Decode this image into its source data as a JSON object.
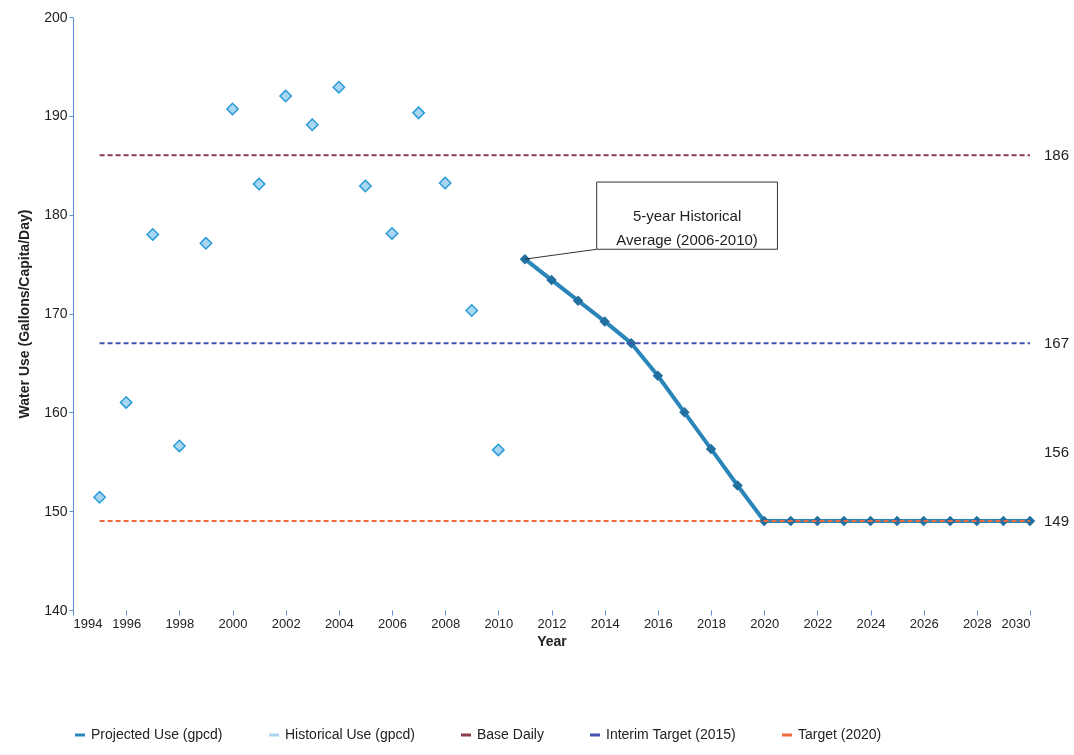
{
  "chart_data": {
    "type": "line",
    "xlabel": "Year",
    "ylabel": "Water Use (Gallons/Capita/Day)",
    "xlim": [
      1994,
      2030
    ],
    "xticks": [
      1994,
      1996,
      1998,
      2000,
      2002,
      2004,
      2006,
      2008,
      2010,
      2012,
      2014,
      2016,
      2018,
      2020,
      2022,
      2024,
      2026,
      2028,
      2030
    ],
    "ylim": [
      140,
      200
    ],
    "yticks": [
      140,
      150,
      160,
      170,
      180,
      190,
      200
    ],
    "grid": false,
    "legend": "bottom",
    "marker": "diamond",
    "series": [
      {
        "name": "Projected Use (gpcd)",
        "color": "#2a86b8",
        "x": [
          2011,
          2012,
          2013,
          2014,
          2015,
          2016,
          2017,
          2018,
          2019,
          2020,
          2021,
          2022,
          2023,
          2024,
          2025,
          2026,
          2027,
          2028,
          2029,
          2030
        ],
        "values": [
          175.5,
          173.4,
          171.3,
          169.2,
          167,
          163.7,
          160,
          156.3,
          152.6,
          149,
          149,
          149,
          149,
          149,
          149,
          149,
          149,
          149,
          149,
          149
        ]
      },
      {
        "name": "Historical Use (gpcd)",
        "type": "scatter",
        "color": "#a9d6f0",
        "x": [
          1995,
          1996,
          1997,
          1998,
          1999,
          2000,
          2001,
          2002,
          2003,
          2004,
          2005,
          2006,
          2007,
          2008,
          2009,
          2010
        ],
        "values": [
          151.4,
          161,
          178,
          156.6,
          177.1,
          190.7,
          183.1,
          192,
          189.1,
          192.9,
          182.9,
          178.1,
          190.3,
          183.2,
          170.3,
          156.2
        ]
      }
    ],
    "ref_lines": [
      {
        "axis": "y",
        "value": 186,
        "label": "Base Daily",
        "color": "#8e3b4c",
        "line_style": "dashed"
      },
      {
        "axis": "y",
        "value": 167,
        "label": "Interim Target (2015)",
        "color": "#4353b0",
        "line_style": "dashed"
      },
      {
        "axis": "y",
        "value": 149,
        "label": "Target (2020)",
        "color": "#f06a40",
        "line_style": "dashed"
      }
    ],
    "annotations": [
      "5-year Historical Average (2006-2010)",
      "186",
      "167",
      "156",
      "149"
    ]
  }
}
